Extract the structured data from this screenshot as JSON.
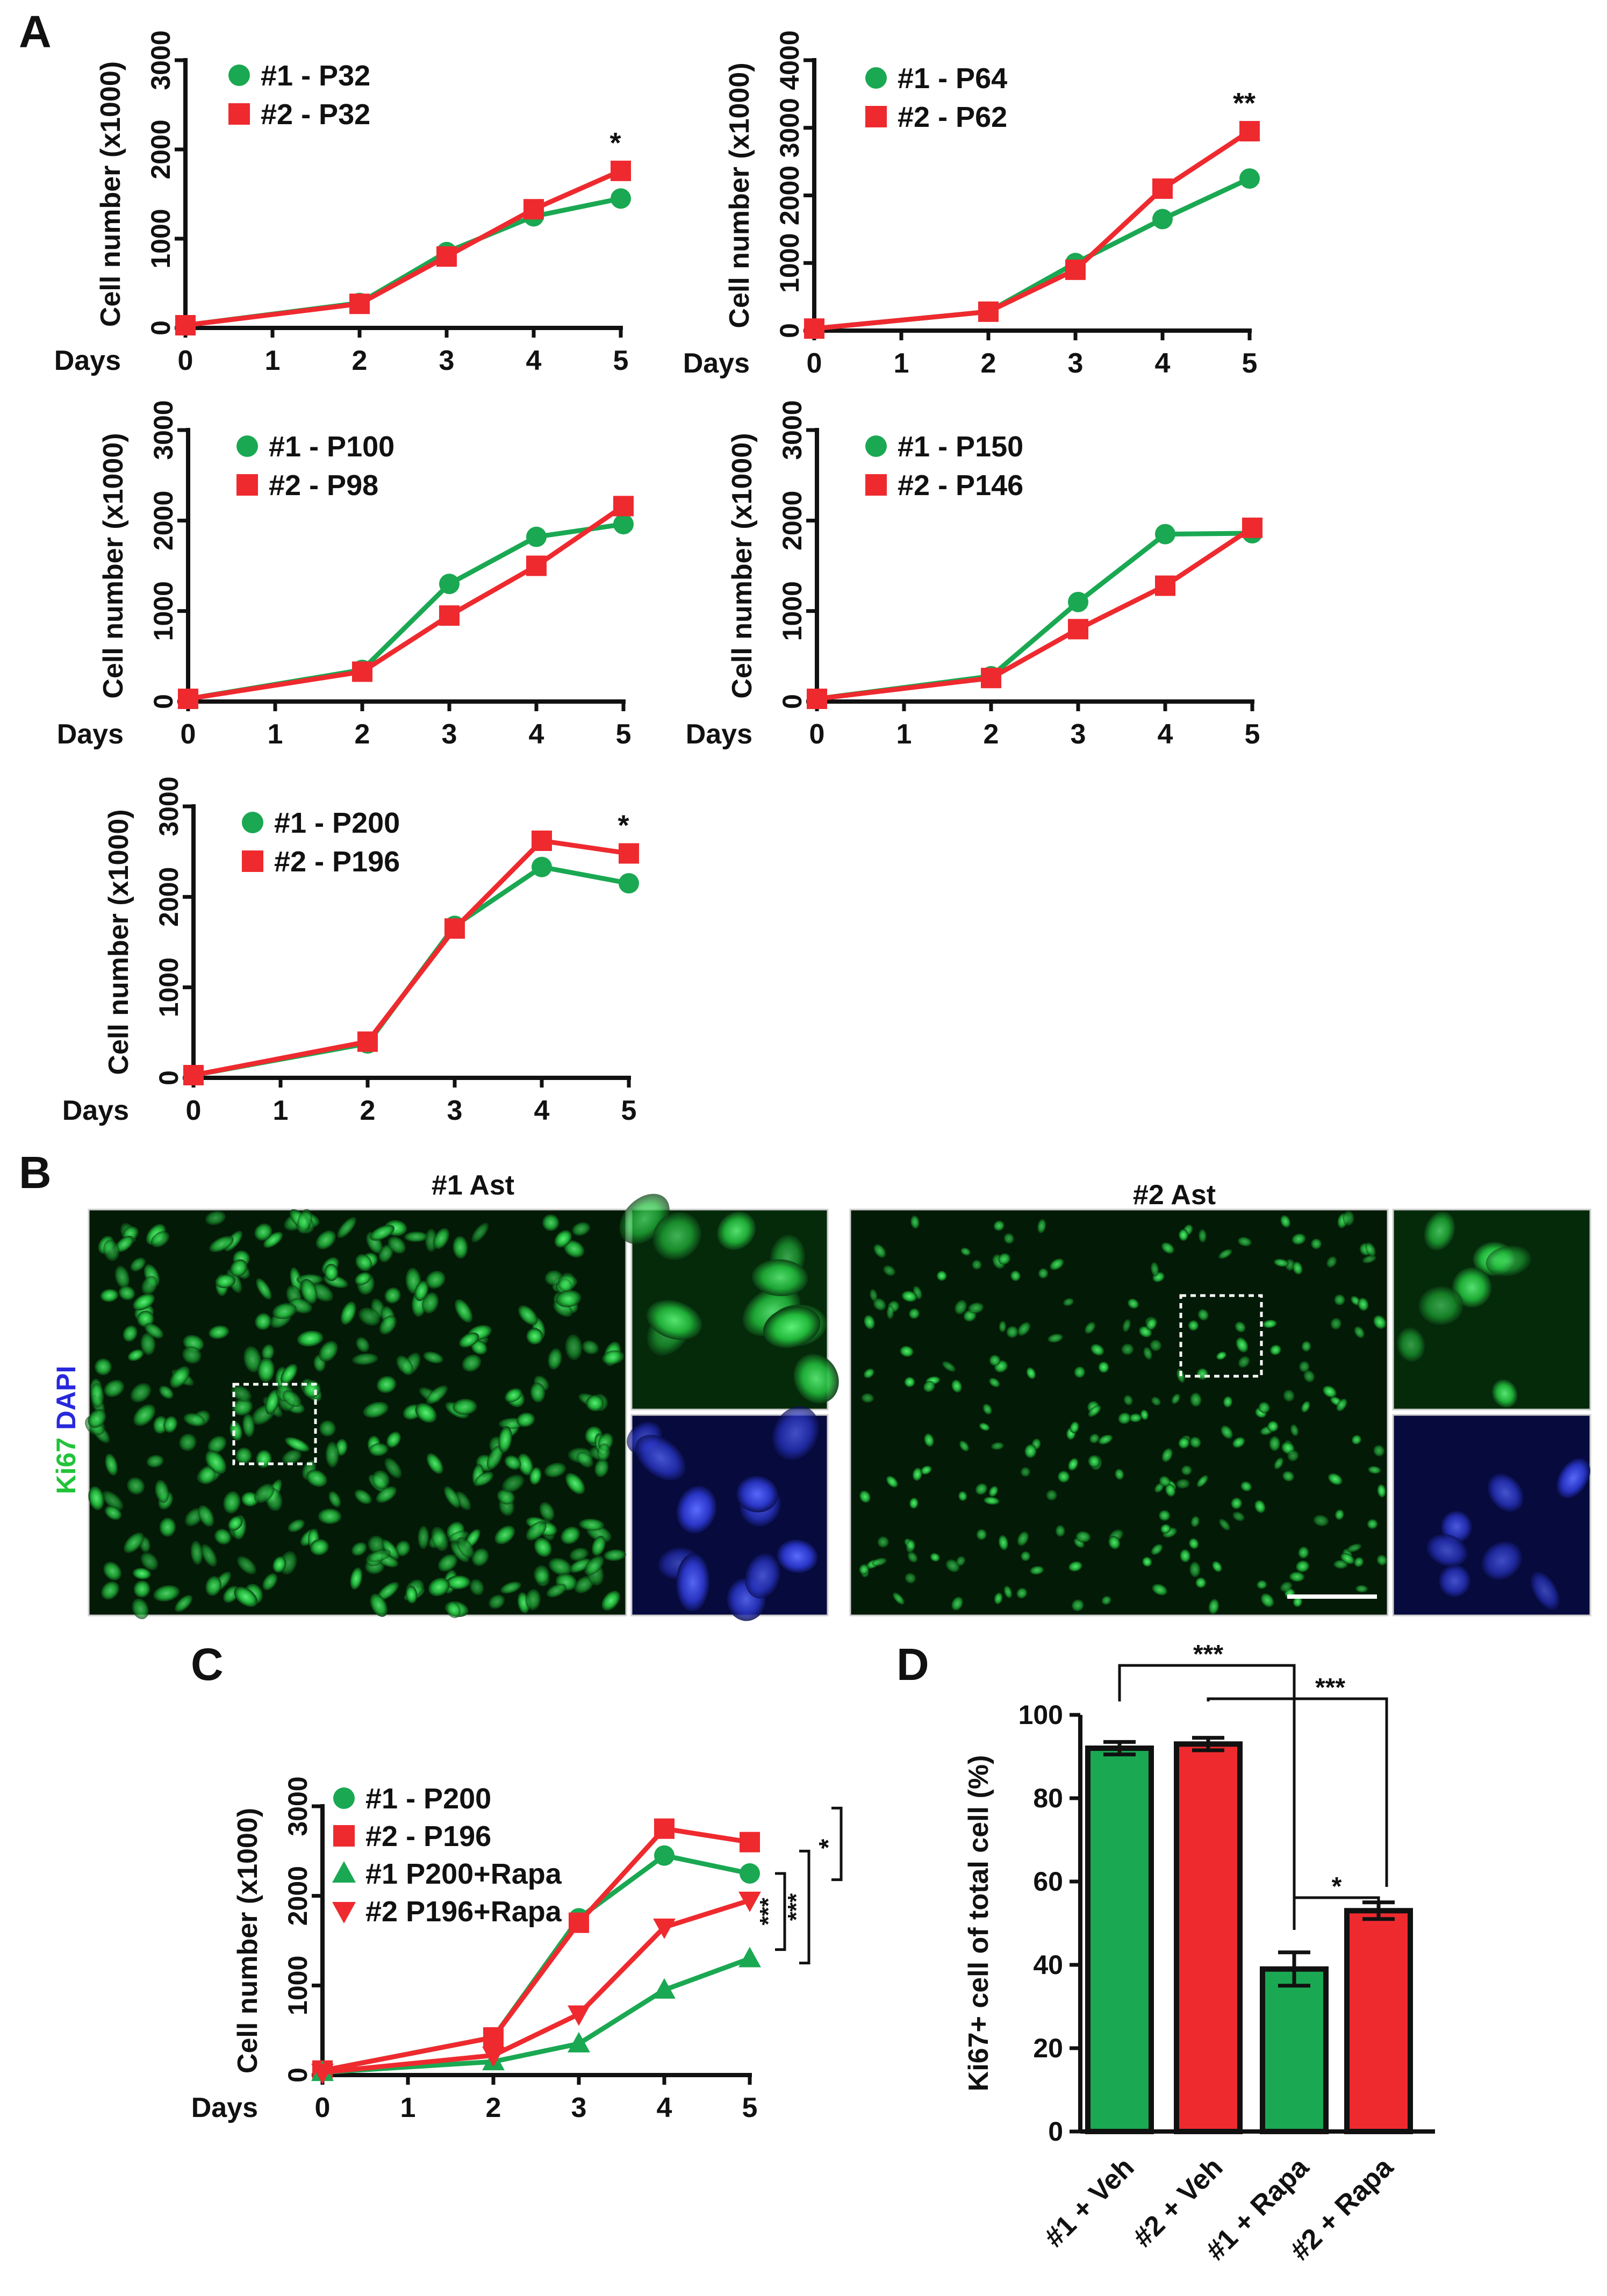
{
  "figure": {
    "panel_labels": {
      "A": "A",
      "B": "B",
      "C": "C",
      "D": "D"
    },
    "colors": {
      "green": "#1aa852",
      "red": "#ee2a2f",
      "black": "#111111",
      "blue": "#2828dc"
    }
  },
  "panelB": {
    "title_1": "#1 Ast",
    "title_2": "#2 Ast",
    "stain_ki67": "Ki67",
    "stain_dapi": "DAPI"
  },
  "chart_data": [
    {
      "type": "line",
      "panel": "A1",
      "xlabel": "Days",
      "ylabel": "Cell number (x1000)",
      "x": [
        0,
        2,
        3,
        4,
        5
      ],
      "xticks": [
        0,
        1,
        2,
        3,
        4,
        5
      ],
      "ylim": [
        0,
        3000
      ],
      "yticks": [
        0,
        1000,
        2000,
        3000
      ],
      "series": [
        {
          "name": "#1 - P32",
          "marker": "circle",
          "color": "green",
          "values": [
            30,
            280,
            850,
            1250,
            1450
          ]
        },
        {
          "name": "#2 - P32",
          "marker": "square",
          "color": "red",
          "values": [
            30,
            270,
            800,
            1330,
            1760
          ]
        }
      ],
      "annotations": [
        {
          "text": "*",
          "x": 5
        }
      ]
    },
    {
      "type": "line",
      "panel": "A2",
      "xlabel": "Days",
      "ylabel": "Cell number (x1000)",
      "x": [
        0,
        2,
        3,
        4,
        5
      ],
      "xticks": [
        0,
        1,
        2,
        3,
        4,
        5
      ],
      "ylim": [
        0,
        4000
      ],
      "yticks": [
        0,
        1000,
        2000,
        3000,
        4000
      ],
      "series": [
        {
          "name": "#1 - P64",
          "marker": "circle",
          "color": "green",
          "values": [
            30,
            280,
            1000,
            1650,
            2250
          ]
        },
        {
          "name": "#2 - P62",
          "marker": "square",
          "color": "red",
          "values": [
            30,
            280,
            900,
            2100,
            2950
          ]
        }
      ],
      "annotations": [
        {
          "text": "**",
          "x": 5
        }
      ]
    },
    {
      "type": "line",
      "panel": "A3",
      "xlabel": "Days",
      "ylabel": "Cell number (x1000)",
      "x": [
        0,
        2,
        3,
        4,
        5
      ],
      "xticks": [
        0,
        1,
        2,
        3,
        4,
        5
      ],
      "ylim": [
        0,
        3000
      ],
      "yticks": [
        0,
        1000,
        2000,
        3000
      ],
      "series": [
        {
          "name": "#1 - P100",
          "marker": "circle",
          "color": "green",
          "values": [
            30,
            350,
            1300,
            1820,
            1960
          ]
        },
        {
          "name": "#2 - P98",
          "marker": "square",
          "color": "red",
          "values": [
            30,
            330,
            950,
            1500,
            2160
          ]
        }
      ],
      "annotations": []
    },
    {
      "type": "line",
      "panel": "A4",
      "xlabel": "Days",
      "ylabel": "Cell number (x1000)",
      "x": [
        0,
        2,
        3,
        4,
        5
      ],
      "xticks": [
        0,
        1,
        2,
        3,
        4,
        5
      ],
      "ylim": [
        0,
        3000
      ],
      "yticks": [
        0,
        1000,
        2000,
        3000
      ],
      "series": [
        {
          "name": "#1 - P150",
          "marker": "circle",
          "color": "green",
          "values": [
            30,
            280,
            1100,
            1850,
            1860
          ]
        },
        {
          "name": "#2 - P146",
          "marker": "square",
          "color": "red",
          "values": [
            30,
            260,
            800,
            1280,
            1920
          ]
        }
      ],
      "annotations": []
    },
    {
      "type": "line",
      "panel": "A5",
      "xlabel": "Days",
      "ylabel": "Cell number (x1000)",
      "x": [
        0,
        2,
        3,
        4,
        5
      ],
      "xticks": [
        0,
        1,
        2,
        3,
        4,
        5
      ],
      "ylim": [
        0,
        3000
      ],
      "yticks": [
        0,
        1000,
        2000,
        3000
      ],
      "series": [
        {
          "name": "#1 - P200",
          "marker": "circle",
          "color": "green",
          "values": [
            30,
            380,
            1680,
            2330,
            2150
          ]
        },
        {
          "name": "#2 - P196",
          "marker": "square",
          "color": "red",
          "values": [
            30,
            400,
            1650,
            2620,
            2480
          ]
        }
      ],
      "annotations": [
        {
          "text": "*",
          "x": 5
        }
      ]
    },
    {
      "type": "line",
      "panel": "C",
      "xlabel": "Days",
      "ylabel": "Cell number (x1000)",
      "x": [
        0,
        2,
        3,
        4,
        5
      ],
      "xticks": [
        0,
        1,
        2,
        3,
        4,
        5
      ],
      "ylim": [
        0,
        3000
      ],
      "yticks": [
        0,
        1000,
        2000,
        3000
      ],
      "series": [
        {
          "name": "#1 - P200",
          "marker": "circle",
          "color": "green",
          "values": [
            50,
            420,
            1750,
            2450,
            2250
          ]
        },
        {
          "name": "#2 - P196",
          "marker": "square",
          "color": "red",
          "values": [
            50,
            420,
            1700,
            2750,
            2600
          ]
        },
        {
          "name": "#1 P200+Rapa",
          "marker": "triangle-up",
          "color": "green",
          "values": [
            30,
            150,
            350,
            950,
            1300
          ]
        },
        {
          "name": "#2 P196+Rapa",
          "marker": "triangle-down",
          "color": "red",
          "values": [
            30,
            220,
            680,
            1650,
            1950
          ]
        }
      ],
      "significance": [
        "*",
        "***",
        "***"
      ]
    },
    {
      "type": "bar",
      "panel": "D",
      "ylabel": "Ki67+ cell of total cell (%)",
      "categories": [
        "#1 + Veh",
        "#2 + Veh",
        "#1 + Rapa",
        "#2 + Rapa"
      ],
      "values": [
        92,
        93,
        39,
        53
      ],
      "errors": [
        1.5,
        1.5,
        4,
        2
      ],
      "bar_colors": [
        "green",
        "red",
        "green",
        "red"
      ],
      "ylim": [
        0,
        100
      ],
      "yticks": [
        0,
        20,
        40,
        60,
        80,
        100
      ],
      "significance": [
        "***",
        "***",
        "*"
      ]
    }
  ]
}
